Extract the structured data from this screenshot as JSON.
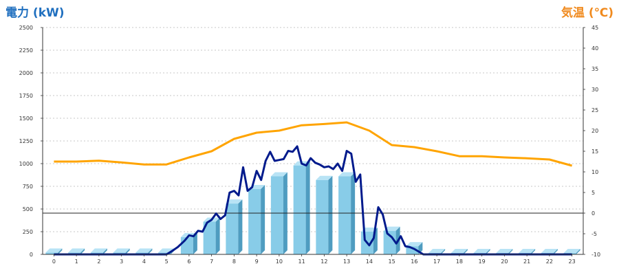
{
  "chart_data": {
    "type": "bar",
    "left_axis_title": "電力 (kW)",
    "right_axis_title": "気温 (℃)",
    "categories": [
      "0",
      "1",
      "2",
      "3",
      "4",
      "5",
      "6",
      "7",
      "8",
      "9",
      "10",
      "11",
      "12",
      "13",
      "14",
      "15",
      "16",
      "17",
      "18",
      "19",
      "20",
      "21",
      "22",
      "23"
    ],
    "left_axis": {
      "min": 0,
      "max": 2500,
      "ticks": [
        "0",
        "250",
        "500",
        "750",
        "1000",
        "1250",
        "1500",
        "1750",
        "2000",
        "2250",
        "2500"
      ]
    },
    "right_axis": {
      "min": -10,
      "max": 45,
      "ticks": [
        "-10",
        "-5",
        "0",
        "5",
        "10",
        "15",
        "20",
        "25",
        "30",
        "35",
        "40",
        "45"
      ]
    },
    "grid": true,
    "colors": {
      "left_title": "#1f6fbf",
      "right_title": "#f08a1e",
      "bar_face": "#88cce8",
      "bar_side": "#4f9cc0",
      "bar_top": "#b8e3f5",
      "power_line": "#001a8c",
      "temp_line": "#ffa400",
      "grid": "#b5b5b5"
    },
    "series": [
      {
        "values": [
          20,
          20,
          20,
          20,
          20,
          20,
          190,
          360,
          560,
          720,
          860,
          980,
          820,
          860,
          250,
          260,
          90,
          15,
          15,
          15,
          15,
          15,
          15,
          15
        ]
      },
      {
        "x": [
          0,
          0.5,
          1,
          1.5,
          2,
          2.5,
          3,
          3.5,
          4,
          4.5,
          5,
          5.2,
          5.5,
          5.8,
          6,
          6.2,
          6.4,
          6.6,
          6.8,
          7,
          7.2,
          7.4,
          7.6,
          7.8,
          8,
          8.2,
          8.4,
          8.6,
          8.8,
          9,
          9.2,
          9.4,
          9.6,
          9.8,
          10,
          10.2,
          10.4,
          10.6,
          10.8,
          11,
          11.2,
          11.4,
          11.6,
          11.8,
          12,
          12.2,
          12.4,
          12.6,
          12.8,
          13,
          13.2,
          13.4,
          13.6,
          13.8,
          14,
          14.2,
          14.4,
          14.6,
          14.8,
          15,
          15.2,
          15.4,
          15.6,
          15.8,
          16,
          16.2,
          16.4,
          17,
          18,
          19,
          20,
          21,
          22,
          23
        ],
        "values": [
          0,
          0,
          0,
          0,
          0,
          0,
          0,
          0,
          0,
          0,
          0,
          30,
          80,
          150,
          210,
          200,
          260,
          250,
          350,
          380,
          450,
          390,
          430,
          680,
          700,
          650,
          960,
          700,
          740,
          920,
          820,
          1030,
          1130,
          1030,
          1040,
          1050,
          1140,
          1130,
          1190,
          1000,
          980,
          1060,
          1010,
          990,
          960,
          970,
          940,
          1000,
          920,
          1140,
          1110,
          800,
          880,
          160,
          100,
          180,
          520,
          440,
          230,
          190,
          120,
          200,
          90,
          80,
          60,
          30,
          0,
          0,
          0,
          0,
          0,
          0,
          0,
          0
        ]
      },
      {
        "axis": "right",
        "values": [
          12.5,
          12.5,
          12.7,
          12.3,
          11.8,
          11.8,
          13.5,
          15,
          18,
          19.5,
          20,
          21.3,
          21.6,
          22,
          20,
          16.5,
          16,
          15,
          13.8,
          13.8,
          13.5,
          13.3,
          13,
          11.5
        ]
      }
    ]
  }
}
